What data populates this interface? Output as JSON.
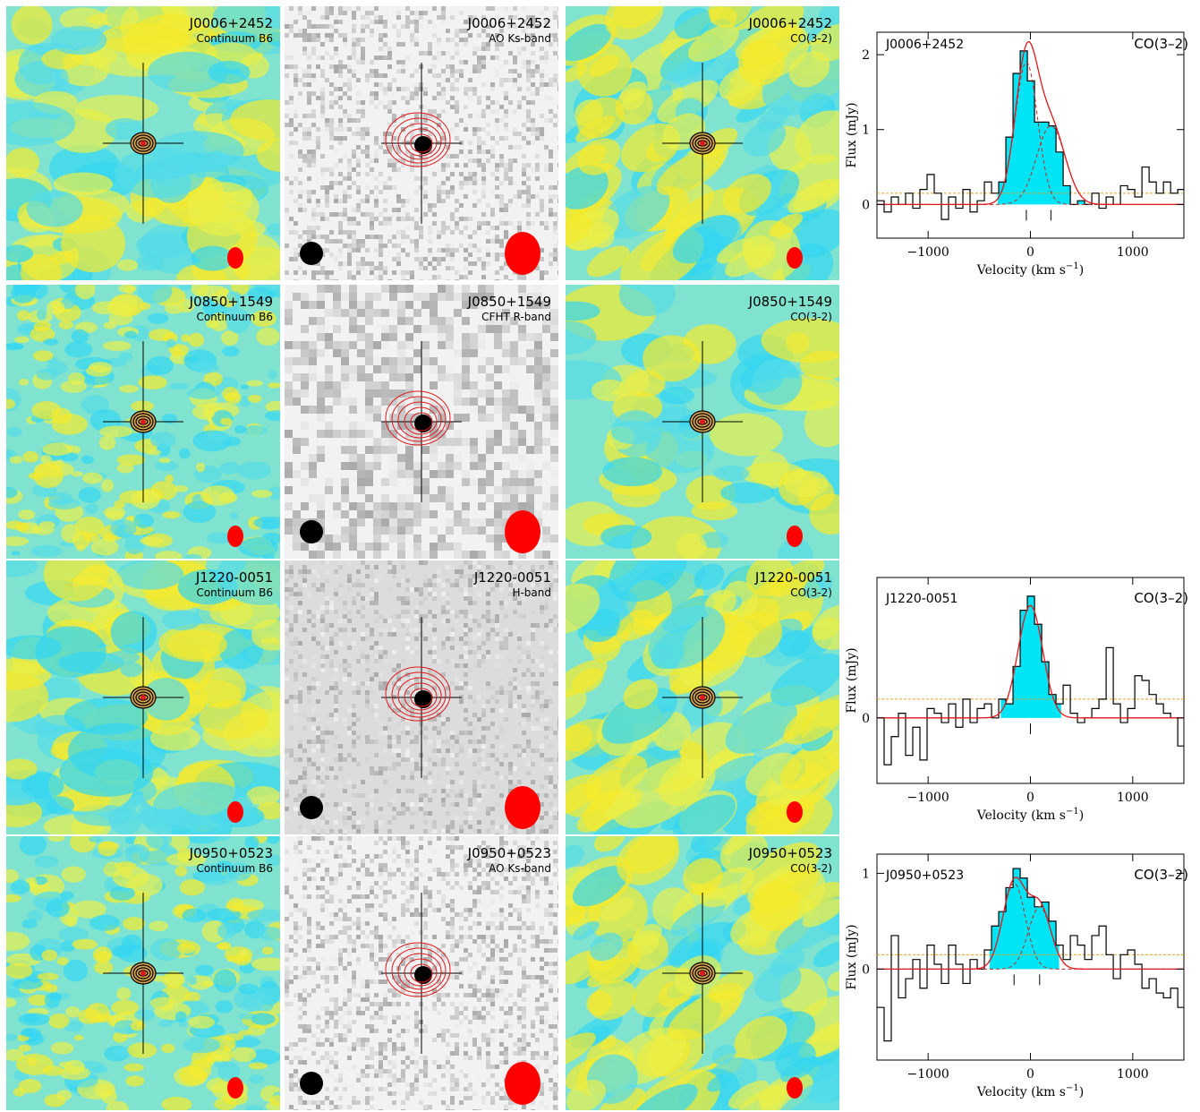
{
  "rows": [
    {
      "continuum": {
        "name": "J0006+2452",
        "band": "Continuum B6"
      },
      "optical": {
        "name": "J0006+2452",
        "band": "AO Ks-band"
      },
      "co": {
        "name": "J0006+2452",
        "band": "CO(3-2)"
      },
      "spectrum": {
        "name": "J0006+2452",
        "line": "CO(3–2)"
      }
    },
    {
      "continuum": {
        "name": "J0850+1549",
        "band": "Continuum B6"
      },
      "optical": {
        "name": "J0850+1549",
        "band": "CFHT R-band"
      },
      "co": {
        "name": "J0850+1549",
        "band": "CO(3-2)"
      },
      "spectrum": null
    },
    {
      "continuum": {
        "name": "J1220-0051",
        "band": "Continuum B6"
      },
      "optical": {
        "name": "J1220-0051",
        "band": "H-band"
      },
      "co": {
        "name": "J1220-0051",
        "band": "CO(3-2)"
      },
      "spectrum": {
        "name": "J1220-0051",
        "line": "CO(3–2)"
      }
    },
    {
      "continuum": {
        "name": "J0950+0523",
        "band": "Continuum B6"
      },
      "optical": {
        "name": "J0950+0523",
        "band": "AO Ks-band"
      },
      "co": {
        "name": "J0950+0523",
        "band": "CO(3-2)"
      },
      "spectrum": {
        "name": "J0950+0523",
        "line": "CO(3–2)"
      }
    }
  ],
  "axes": {
    "ylabel": "Flux (mJy)",
    "xlabel": "Velocity (km s",
    "xlabel_sup": "−1",
    "xlabel_end": ")"
  },
  "colors": {
    "map_blue": "#33d6f2",
    "map_yellow": "#f5ea2c",
    "contour_red": "#e0181b",
    "fill_cyan": "#00e5f5",
    "rms_orange": "#e8a020"
  },
  "chart_data": [
    {
      "type": "line",
      "title": "J0006+2452 CO(3–2)",
      "xlabel": "Velocity (km s−1)",
      "ylabel": "Flux (mJy)",
      "xlim": [
        -1500,
        1500
      ],
      "ylim": [
        -0.45,
        2.3
      ],
      "xticks": [
        -1000,
        0,
        1000
      ],
      "yticks": [
        0,
        1,
        2
      ],
      "rms": 0.15,
      "x": [
        -1500,
        -1430,
        -1360,
        -1290,
        -1220,
        -1150,
        -1080,
        -1010,
        -940,
        -870,
        -800,
        -730,
        -660,
        -590,
        -520,
        -450,
        -380,
        -310,
        -240,
        -170,
        -100,
        -30,
        40,
        110,
        180,
        250,
        320,
        390,
        460,
        530,
        600,
        670,
        740,
        810,
        880,
        950,
        1020,
        1090,
        1160,
        1230,
        1300,
        1370,
        1440
      ],
      "values": [
        0.05,
        -0.1,
        0.1,
        0.0,
        0.15,
        -0.05,
        0.2,
        0.4,
        0.15,
        -0.2,
        0.1,
        -0.05,
        0.2,
        -0.1,
        0.05,
        0.3,
        0.15,
        0.3,
        0.9,
        1.75,
        2.05,
        1.65,
        1.1,
        1.1,
        1.05,
        0.7,
        0.25,
        0.0,
        0.05,
        0.0,
        0.15,
        -0.05,
        0.1,
        0.0,
        0.25,
        0.2,
        0.1,
        0.5,
        0.3,
        0.15,
        0.3,
        0.15,
        0.2
      ],
      "fill_range": [
        -320,
        530
      ],
      "components": [
        {
          "center": -40,
          "amp": 1.9,
          "sigma": 110
        },
        {
          "center": 200,
          "amp": 1.05,
          "sigma": 140
        }
      ],
      "markers": [
        -40,
        200
      ]
    },
    {
      "type": "line",
      "title": "J1220-0051 CO(3–2)",
      "xlabel": "Velocity (km s−1)",
      "ylabel": "Flux (mJy)",
      "xlim": [
        -1500,
        1500
      ],
      "ylim": [
        -0.7,
        1.5
      ],
      "xticks": [
        -1000,
        0,
        1000
      ],
      "yticks": [
        0
      ],
      "rms": 0.2,
      "x": [
        -1500,
        -1430,
        -1360,
        -1290,
        -1220,
        -1150,
        -1080,
        -1010,
        -940,
        -870,
        -800,
        -730,
        -660,
        -590,
        -520,
        -450,
        -380,
        -310,
        -240,
        -170,
        -100,
        -30,
        40,
        110,
        180,
        250,
        320,
        390,
        460,
        530,
        600,
        670,
        740,
        810,
        880,
        950,
        1020,
        1090,
        1160,
        1230,
        1300,
        1370,
        1440
      ],
      "values": [
        0.0,
        -0.5,
        -0.2,
        0.05,
        -0.4,
        -0.1,
        -0.45,
        0.1,
        0.05,
        -0.05,
        0.15,
        -0.1,
        0.2,
        -0.05,
        0.1,
        0.15,
        0.0,
        0.2,
        0.15,
        0.55,
        1.15,
        1.3,
        1.0,
        0.6,
        0.25,
        0.15,
        0.35,
        0.05,
        -0.05,
        0.0,
        0.1,
        0.2,
        0.75,
        0.15,
        -0.05,
        0.1,
        0.45,
        0.4,
        0.25,
        0.15,
        0.05,
        0.0,
        -0.3
      ],
      "fill_range": [
        -290,
        300
      ],
      "components": [
        {
          "center": 0,
          "amp": 1.2,
          "sigma": 120
        }
      ],
      "markers": [
        0
      ]
    },
    {
      "type": "line",
      "title": "J0950+0523 CO(3–2)",
      "xlabel": "Velocity (km s−1)",
      "ylabel": "Flux (mJy)",
      "xlim": [
        -1500,
        1500
      ],
      "ylim": [
        -0.95,
        1.2
      ],
      "xticks": [
        -1000,
        0,
        1000
      ],
      "yticks": [
        0,
        1
      ],
      "rms": 0.15,
      "x": [
        -1500,
        -1430,
        -1360,
        -1290,
        -1220,
        -1150,
        -1080,
        -1010,
        -940,
        -870,
        -800,
        -730,
        -660,
        -590,
        -520,
        -450,
        -380,
        -310,
        -240,
        -170,
        -100,
        -30,
        40,
        110,
        180,
        250,
        320,
        390,
        460,
        530,
        600,
        670,
        740,
        810,
        880,
        950,
        1020,
        1090,
        1160,
        1230,
        1300,
        1370,
        1440
      ],
      "values": [
        -0.4,
        -0.75,
        0.35,
        -0.3,
        -0.1,
        0.1,
        -0.2,
        0.25,
        0.05,
        -0.15,
        0.25,
        0.05,
        -0.15,
        0.1,
        0.0,
        0.2,
        0.45,
        0.6,
        0.85,
        1.05,
        0.95,
        0.75,
        0.65,
        0.7,
        0.5,
        0.25,
        0.1,
        0.35,
        0.25,
        0.1,
        0.35,
        0.45,
        0.15,
        -0.1,
        0.15,
        0.2,
        0.05,
        -0.2,
        -0.1,
        -0.25,
        -0.3,
        -0.2,
        -0.4
      ],
      "fill_range": [
        -400,
        280
      ],
      "components": [
        {
          "center": -160,
          "amp": 0.9,
          "sigma": 110
        },
        {
          "center": 90,
          "amp": 0.65,
          "sigma": 110
        }
      ],
      "markers": [
        -160,
        90
      ]
    }
  ]
}
